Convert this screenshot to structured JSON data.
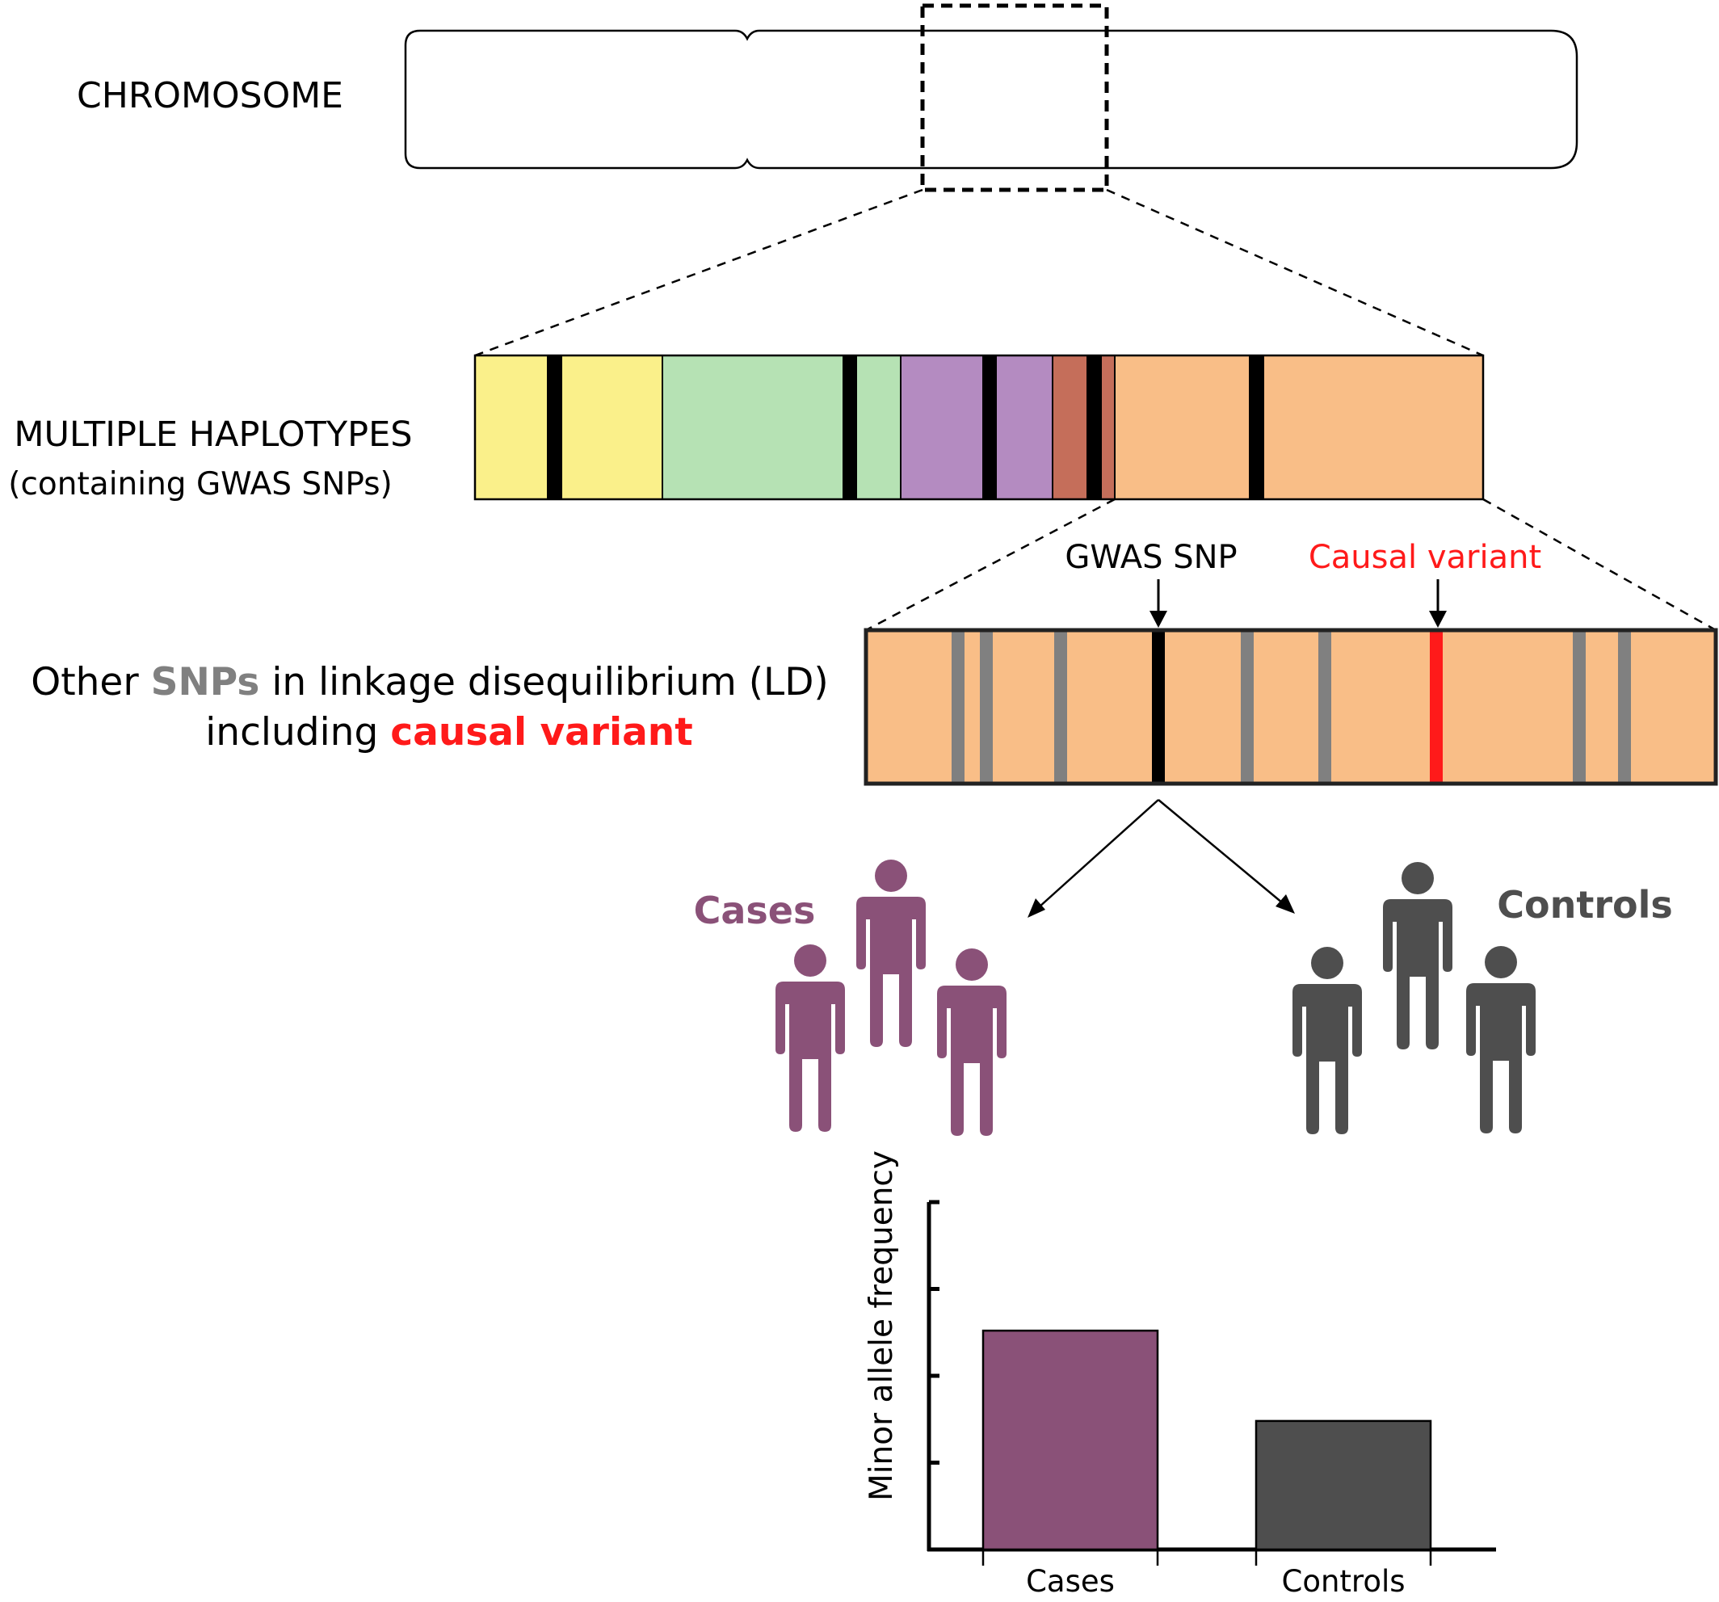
{
  "labels": {
    "chromosome": "CHROMOSOME",
    "haplotypes_line1": "MULTIPLE HAPLOTYPES",
    "haplotypes_line2": "(containing GWAS SNPs)",
    "ld_line1_part1": "Other ",
    "ld_line1_snps": "SNPs",
    "ld_line1_part2": " in linkage disequilibrium (LD)",
    "ld_line2_part1": "including ",
    "ld_line2_causal": "causal variant",
    "gwas_snp": "GWAS SNP",
    "causal_variant": "Causal variant",
    "cases": "Cases",
    "controls": "Controls"
  },
  "colors": {
    "haplotype_yellow": "#FAF08A",
    "haplotype_green": "#B6E2B4",
    "haplotype_purple": "#B48BC1",
    "haplotype_brown": "#C56E5A",
    "haplotype_orange": "#F9BE87",
    "snp_black": "#000000",
    "snp_grey": "#808080",
    "causal_red": "#FF1A1A",
    "cases_purple": "#8A5178",
    "controls_grey": "#4E4E4E"
  },
  "chart_data": {
    "type": "bar",
    "categories": [
      "Cases",
      "Controls"
    ],
    "values": [
      0.63,
      0.37
    ],
    "ylim": [
      0,
      1
    ],
    "ylabel": "Minor allele frequency",
    "xlabel": "",
    "yticks_count": 4,
    "series_colors": [
      "#8A5178",
      "#4E4E4E"
    ],
    "grid": false
  }
}
